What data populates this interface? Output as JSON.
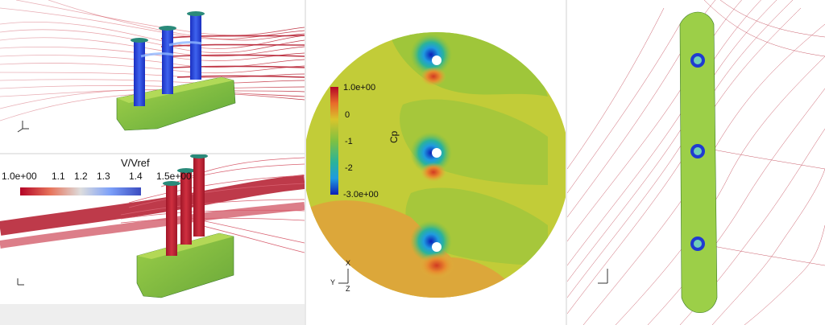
{
  "velocity_legend": {
    "title": "V/Vref",
    "ticks": [
      "1.0e+00",
      "1.1",
      "1.2",
      "1.3",
      "1.4",
      "1.5e+00"
    ]
  },
  "cp_legend": {
    "title": "Cp",
    "ticks": [
      "1.0e+00",
      "0",
      "-1",
      "-2",
      "-3.0e+00"
    ]
  },
  "axis_labels": {
    "x": "X",
    "y": "Y",
    "z": "Z"
  },
  "colors": {
    "streamline_red": "#b3172a",
    "hull_green": "#7fbf3a",
    "rotor_blue": "#1f3bd1",
    "contour_base": "#c2cc38"
  }
}
